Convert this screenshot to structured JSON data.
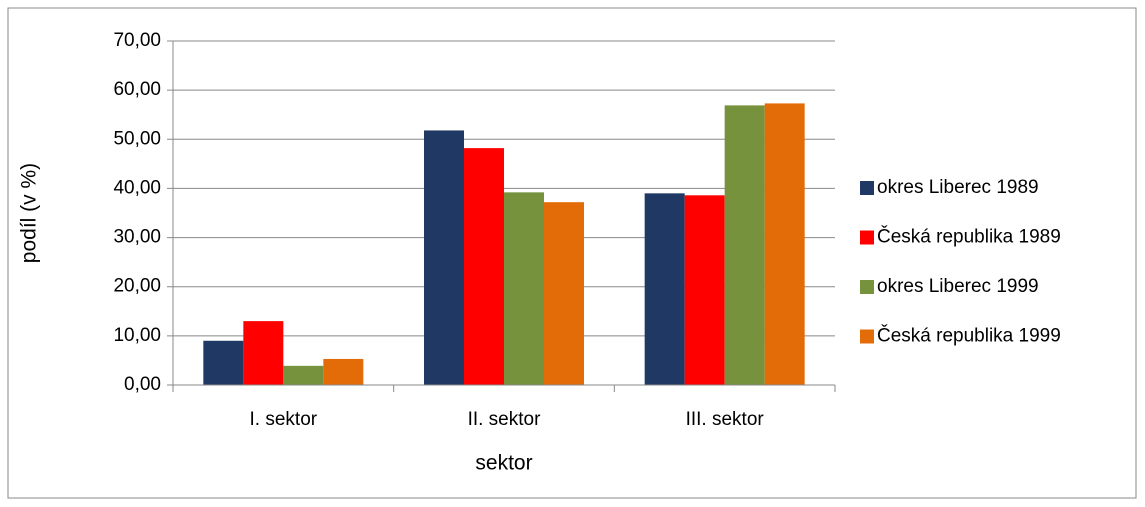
{
  "chart_data": {
    "type": "bar",
    "x_label": "sektor",
    "y_label": "podíl (v %)",
    "categories": [
      "I. sektor",
      "II. sektor",
      "III. sektor"
    ],
    "series": [
      {
        "name": "okres Liberec 1989",
        "color": "#1f3864",
        "values": [
          9.0,
          51.8,
          39.0
        ]
      },
      {
        "name": "Česká republika 1989",
        "color": "#ff0000",
        "values": [
          13.0,
          48.2,
          38.6
        ]
      },
      {
        "name": "okres Liberec 1999",
        "color": "#76923c",
        "values": [
          3.9,
          39.2,
          56.9
        ]
      },
      {
        "name": "Česká republika 1999",
        "color": "#e36c09",
        "values": [
          5.3,
          37.2,
          57.3
        ]
      }
    ],
    "ylim": [
      0,
      70
    ],
    "yticks": [
      {
        "value": 0,
        "label": "0,00"
      },
      {
        "value": 10,
        "label": "10,00"
      },
      {
        "value": 20,
        "label": "20,00"
      },
      {
        "value": 30,
        "label": "30,00"
      },
      {
        "value": 40,
        "label": "40,00"
      },
      {
        "value": 50,
        "label": "50,00"
      },
      {
        "value": 60,
        "label": "60,00"
      },
      {
        "value": 70,
        "label": "70,00"
      }
    ],
    "grid": true,
    "legend": "right"
  }
}
